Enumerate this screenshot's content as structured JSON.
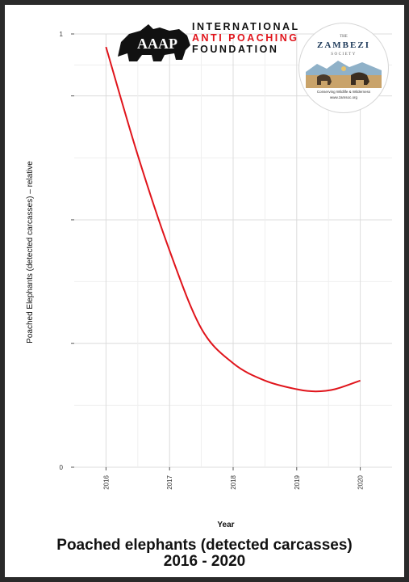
{
  "chart_data": {
    "type": "line",
    "title": "Poached elephants (detected carcasses)",
    "subtitle": "2016 - 2020",
    "xlabel": "Year",
    "ylabel": "Poached Elephants (detected carcasses) – relative",
    "xlim": [
      2015.5,
      2020.5
    ],
    "ylim": [
      0,
      1.0
    ],
    "x_ticks": [
      "2016",
      "2017",
      "2018",
      "2019",
      "2020"
    ],
    "y_ticks": [
      {
        "value": 0,
        "label": "0"
      },
      {
        "value": 0.286,
        "label": ""
      },
      {
        "value": 0.571,
        "label": ""
      },
      {
        "value": 0.857,
        "label": ""
      },
      {
        "value": 1.0,
        "label": "1"
      }
    ],
    "grid": true,
    "series_color": "#e0141b",
    "series": [
      {
        "x": [
          2016,
          2016.5,
          2017,
          2017.5,
          2018,
          2018.5,
          2019,
          2019.3,
          2019.6,
          2020
        ],
        "y": [
          0.97,
          0.72,
          0.5,
          0.32,
          0.24,
          0.2,
          0.18,
          0.175,
          0.18,
          0.2
        ]
      }
    ]
  },
  "logos": {
    "iapf_line1": "INTERNATIONAL",
    "iapf_line2": "ANTI POACHING",
    "iapf_line3": "FOUNDATION",
    "zambezi_the": "THE",
    "zambezi_name": "ZAMBEZI",
    "zambezi_society": "SOCIETY",
    "zambezi_tagline": "Conserving Wildlife & Wilderness",
    "zambezi_url": "www.zamsoc.org"
  }
}
